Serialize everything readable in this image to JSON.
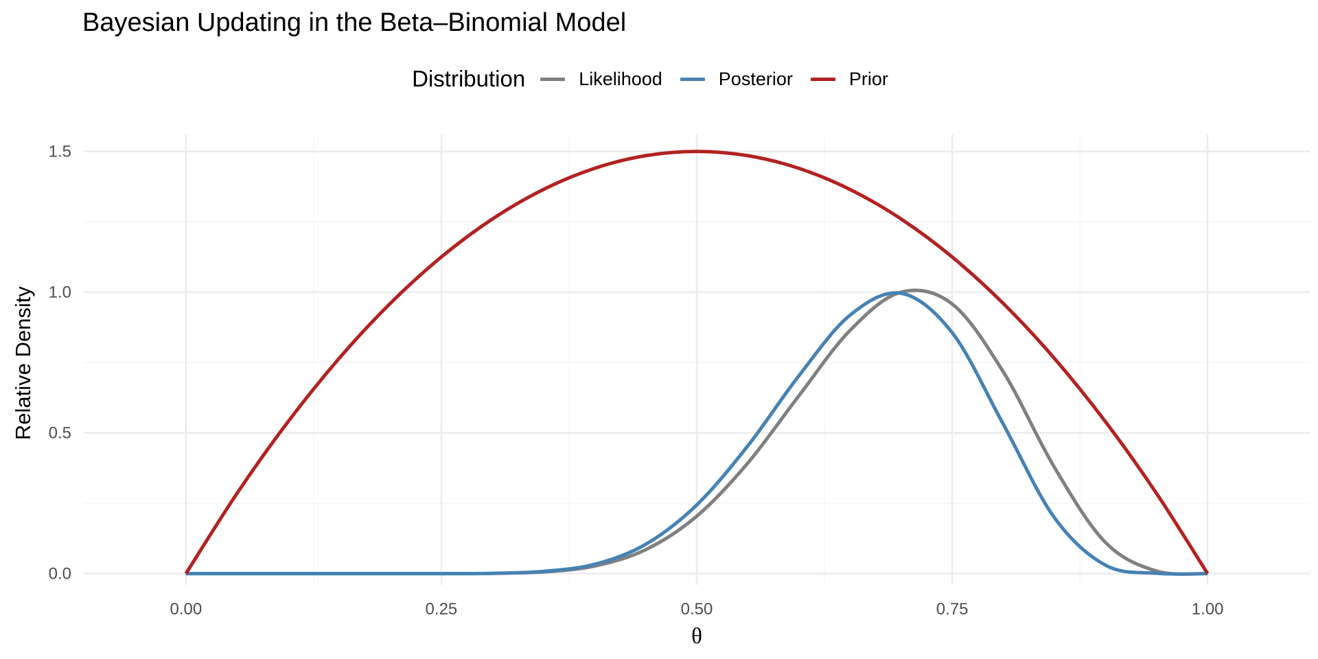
{
  "chart_data": {
    "type": "line",
    "title": "Bayesian Updating in the Beta–Binomial Model",
    "xlabel": "θ",
    "ylabel": "Relative Density",
    "xlim": [
      -0.1,
      1.1
    ],
    "ylim": [
      -0.04,
      1.56
    ],
    "x_ticks": [
      "0.00",
      "0.25",
      "0.50",
      "0.75",
      "1.00"
    ],
    "y_ticks": [
      "0.0",
      "0.5",
      "1.0",
      "1.5"
    ],
    "grid": true,
    "legend_position": "top-center",
    "legend_title": "Distribution",
    "series": [
      {
        "name": "Likelihood",
        "color": "#808080",
        "x": [
          0,
          0.05,
          0.1,
          0.15,
          0.2,
          0.25,
          0.3,
          0.35,
          0.4,
          0.45,
          0.5,
          0.55,
          0.6,
          0.65,
          0.7,
          0.75,
          0.8,
          0.85,
          0.9,
          0.95,
          1.0
        ],
        "y": [
          0,
          0,
          0,
          0,
          0,
          0,
          0.001,
          0.006,
          0.027,
          0.085,
          0.204,
          0.393,
          0.632,
          0.864,
          1.0,
          0.958,
          0.717,
          0.378,
          0.111,
          0.009,
          0
        ]
      },
      {
        "name": "Posterior",
        "color": "#4682B4",
        "x": [
          0,
          0.05,
          0.1,
          0.15,
          0.2,
          0.25,
          0.3,
          0.35,
          0.4,
          0.45,
          0.5,
          0.55,
          0.6,
          0.65,
          0.7,
          0.75,
          0.8,
          0.85,
          0.9,
          0.95,
          1.0
        ],
        "y": [
          0,
          0,
          0,
          0,
          0,
          0,
          0.001,
          0.008,
          0.033,
          0.104,
          0.244,
          0.454,
          0.703,
          0.918,
          0.996,
          0.856,
          0.531,
          0.199,
          0.03,
          0.001,
          0
        ]
      },
      {
        "name": "Prior",
        "color": "#B22222",
        "x": [
          0,
          0.05,
          0.1,
          0.15,
          0.2,
          0.25,
          0.3,
          0.35,
          0.4,
          0.45,
          0.5,
          0.55,
          0.6,
          0.65,
          0.7,
          0.75,
          0.8,
          0.85,
          0.9,
          0.95,
          1.0
        ],
        "y": [
          0,
          0.285,
          0.54,
          0.765,
          0.96,
          1.125,
          1.26,
          1.365,
          1.44,
          1.485,
          1.5,
          1.485,
          1.44,
          1.365,
          1.26,
          1.125,
          0.96,
          0.765,
          0.54,
          0.285,
          0
        ]
      }
    ]
  }
}
